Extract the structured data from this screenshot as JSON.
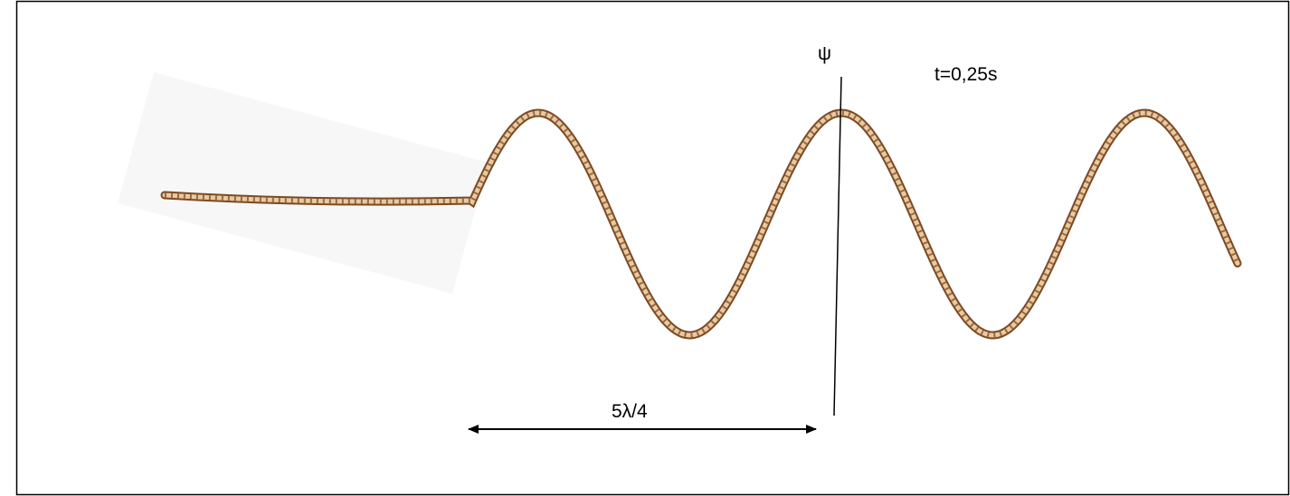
{
  "labels": {
    "psi": "ψ",
    "time": "t=0,25s",
    "distance": "5λ/4"
  }
}
